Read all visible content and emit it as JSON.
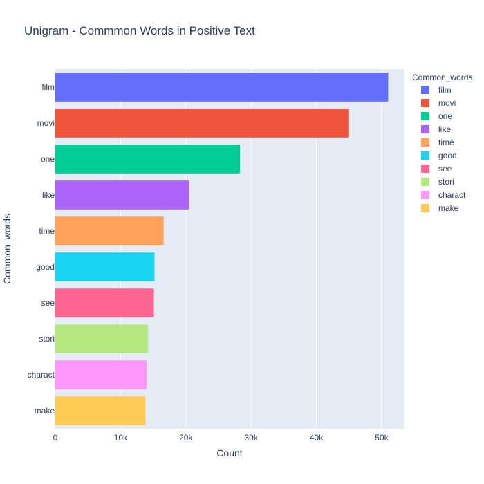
{
  "chart_data": {
    "type": "bar",
    "orientation": "horizontal",
    "title": "Unigram - Commmon Words in Positive Text",
    "xlabel": "Count",
    "ylabel": "Common_words",
    "xlim": [
      0,
      53500
    ],
    "x_ticks": [
      0,
      10000,
      20000,
      30000,
      40000,
      50000
    ],
    "x_tick_labels": [
      "0",
      "10k",
      "20k",
      "30k",
      "40k",
      "50k"
    ],
    "grid": true,
    "legend_title": "Common_words",
    "legend_position": "right",
    "categories": [
      "film",
      "movi",
      "one",
      "like",
      "time",
      "good",
      "see",
      "stori",
      "charact",
      "make"
    ],
    "values": [
      51000,
      45000,
      28300,
      20500,
      16600,
      15200,
      15100,
      14200,
      14000,
      13800
    ],
    "colors": [
      "#636efa",
      "#ef553b",
      "#00cc96",
      "#ab63fa",
      "#ffa15a",
      "#19d3f3",
      "#ff6692",
      "#b6e880",
      "#ff97ff",
      "#fecb52"
    ]
  }
}
